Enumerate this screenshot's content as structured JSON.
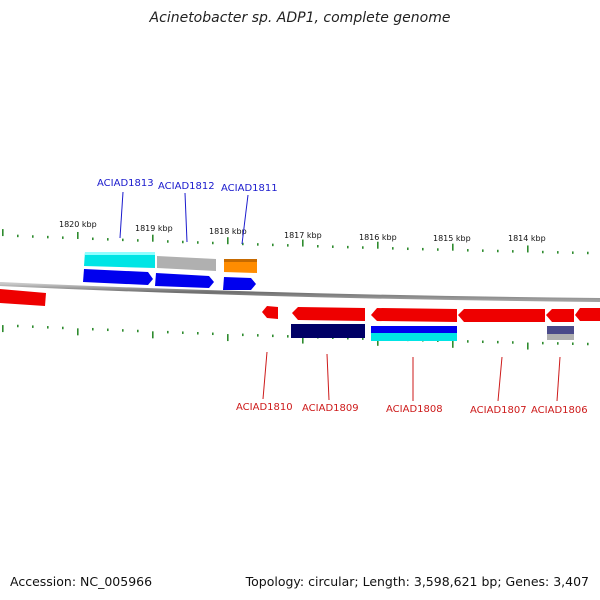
{
  "title": "Acinetobacter sp. ADP1, complete genome",
  "accession": "Accession: NC_005966",
  "topology": "Topology: circular; Length: 3,598,621 bp; Genes: 3,407",
  "colors": {
    "backbone": "#808080",
    "ticks": "#2e8b2e",
    "forward_label": "#1a1acd",
    "reverse_label": "#cd1a1a",
    "red": "#ee0000",
    "blue": "#0000ee",
    "cyan": "#00e5e5",
    "gray": "#b0b0b0",
    "orange": "#ff8c00",
    "navy": "#000066"
  },
  "kbp_labels": [
    "1820 kbp",
    "1819 kbp",
    "1818 kbp",
    "1817 kbp",
    "1816 kbp",
    "1815 kbp",
    "1814 kbp"
  ],
  "forward_gene_labels": [
    "ACIAD1813",
    "ACIAD1812",
    "ACIAD1811"
  ],
  "reverse_gene_labels": [
    "ACIAD1810",
    "ACIAD1809",
    "ACIAD1808",
    "ACIAD1807",
    "ACIAD1806"
  ]
}
